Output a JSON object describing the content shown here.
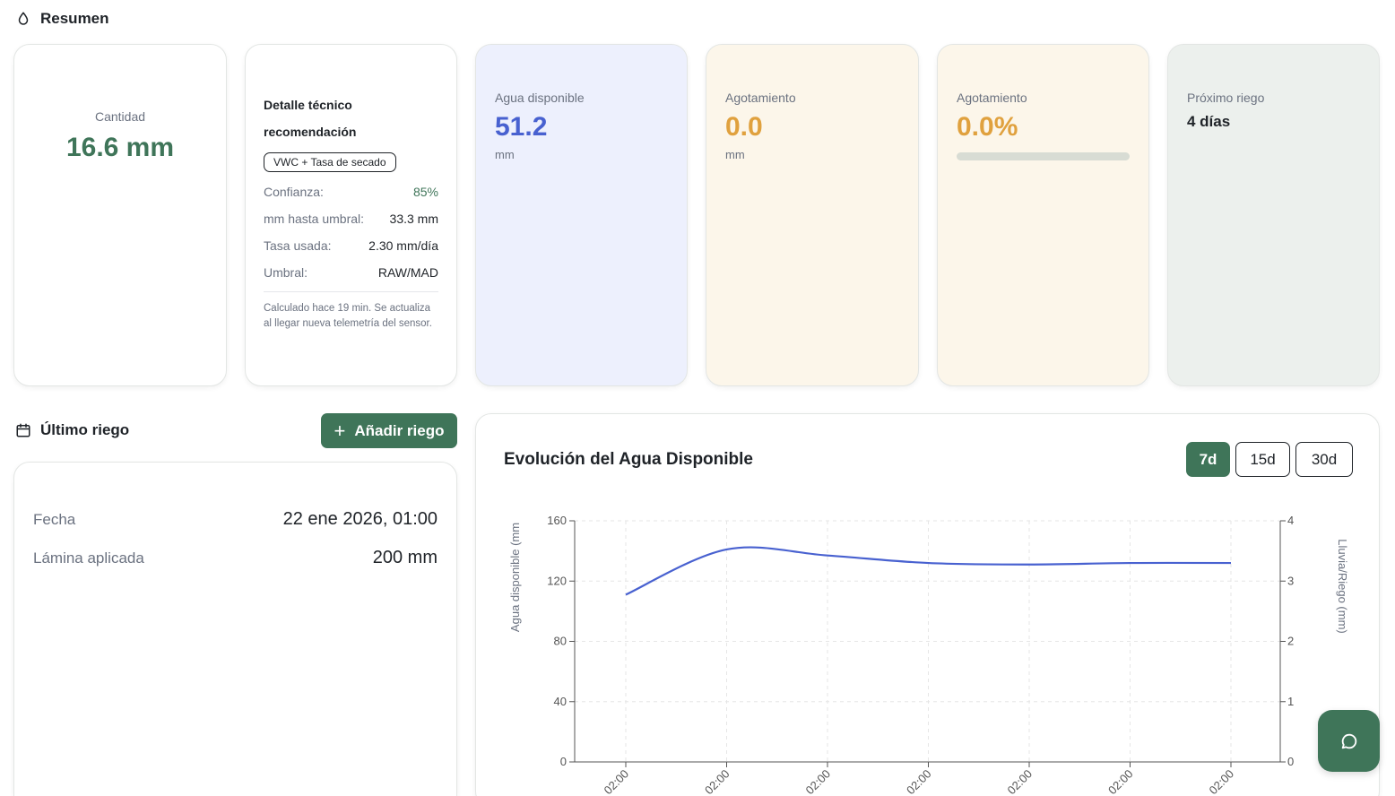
{
  "resumen": {
    "title": "Resumen"
  },
  "cantidad": {
    "label": "Cantidad",
    "value": "16.6 mm"
  },
  "detalle": {
    "title": "Detalle técnico recomendación",
    "chip": "VWC + Tasa de secado",
    "rows": [
      {
        "key": "Confianza:",
        "value": "85%"
      },
      {
        "key": "mm hasta umbral:",
        "value": "33.3 mm"
      },
      {
        "key": "Tasa usada:",
        "value": "2.30 mm/día"
      },
      {
        "key": "Umbral:",
        "value": "RAW/MAD"
      }
    ],
    "note": "Calculado hace 19 min. Se actualiza al llegar nueva telemetría del sensor."
  },
  "agua_disponible": {
    "label": "Agua disponible",
    "value": "51.2",
    "unit": "mm"
  },
  "agotamiento_mm": {
    "label": "Agotamiento",
    "value": "0.0",
    "unit": "mm"
  },
  "agotamiento_pct": {
    "label": "Agotamiento",
    "value": "0.0%",
    "progress": 0.0
  },
  "proximo_riego": {
    "label": "Próximo riego",
    "value": "4 días"
  },
  "ultimo_riego": {
    "title": "Último riego",
    "add_button": "Añadir riego",
    "fecha_label": "Fecha",
    "fecha_value": "22 ene 2026, 01:00",
    "lamina_label": "Lámina aplicada",
    "lamina_value": "200 mm"
  },
  "chart_panel": {
    "title": "Evolución del Agua Disponible",
    "tabs": [
      {
        "label": "7d",
        "active": true
      },
      {
        "label": "15d",
        "active": false
      },
      {
        "label": "30d",
        "active": false
      }
    ]
  },
  "colors": {
    "brand": "#3f7559",
    "agua": "#4861d0",
    "agotamiento": "#e0a13e"
  },
  "icons": {
    "resumen": "droplet-icon",
    "ultimo_riego": "calendar-icon",
    "fab": "chat-icon"
  },
  "chart_data": {
    "type": "line",
    "ylabel": "Agua disponible (mm",
    "y2label": "Lluvia/Riego (mm)",
    "ylim": [
      0,
      160
    ],
    "y2lim": [
      0,
      4
    ],
    "y_ticks": [
      0,
      40,
      80,
      120,
      160
    ],
    "y2_ticks": [
      0,
      1,
      2,
      3,
      4
    ],
    "x_tick_labels": [
      "02:00",
      "02:00",
      "02:00",
      "02:00",
      "02:00",
      "02:00",
      "02:00"
    ],
    "grid": true,
    "series": [
      {
        "values": [
          111,
          141,
          137,
          132,
          131,
          132,
          132
        ]
      }
    ]
  }
}
